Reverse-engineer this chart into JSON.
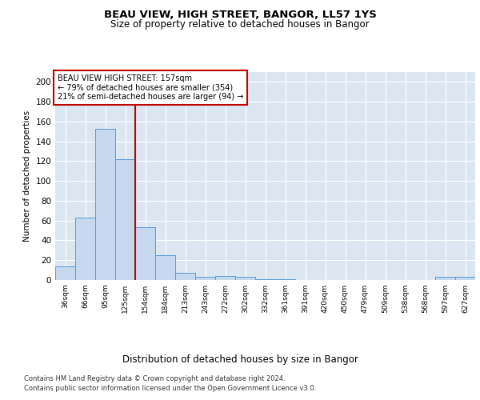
{
  "title1": "BEAU VIEW, HIGH STREET, BANGOR, LL57 1YS",
  "title2": "Size of property relative to detached houses in Bangor",
  "xlabel": "Distribution of detached houses by size in Bangor",
  "ylabel": "Number of detached properties",
  "categories": [
    "36sqm",
    "66sqm",
    "95sqm",
    "125sqm",
    "154sqm",
    "184sqm",
    "213sqm",
    "243sqm",
    "272sqm",
    "302sqm",
    "332sqm",
    "361sqm",
    "391sqm",
    "420sqm",
    "450sqm",
    "479sqm",
    "509sqm",
    "538sqm",
    "568sqm",
    "597sqm",
    "627sqm"
  ],
  "values": [
    14,
    63,
    153,
    122,
    53,
    25,
    7,
    3,
    4,
    3,
    1,
    1,
    0,
    0,
    0,
    0,
    0,
    0,
    0,
    3,
    3
  ],
  "bar_color": "#c5d8ed",
  "bar_edge_color": "#5b9bd5",
  "vline_x": 4,
  "vline_color": "#c00000",
  "annotation_box_text": "BEAU VIEW HIGH STREET: 157sqm\n← 79% of detached houses are smaller (354)\n21% of semi-detached houses are larger (94) →",
  "annotation_box_color": "#c00000",
  "ylim": [
    0,
    210
  ],
  "yticks": [
    0,
    20,
    40,
    60,
    80,
    100,
    120,
    140,
    160,
    180,
    200
  ],
  "plot_bg_color": "#dce6f1",
  "footer1": "Contains HM Land Registry data © Crown copyright and database right 2024.",
  "footer2": "Contains public sector information licensed under the Open Government Licence v3.0."
}
